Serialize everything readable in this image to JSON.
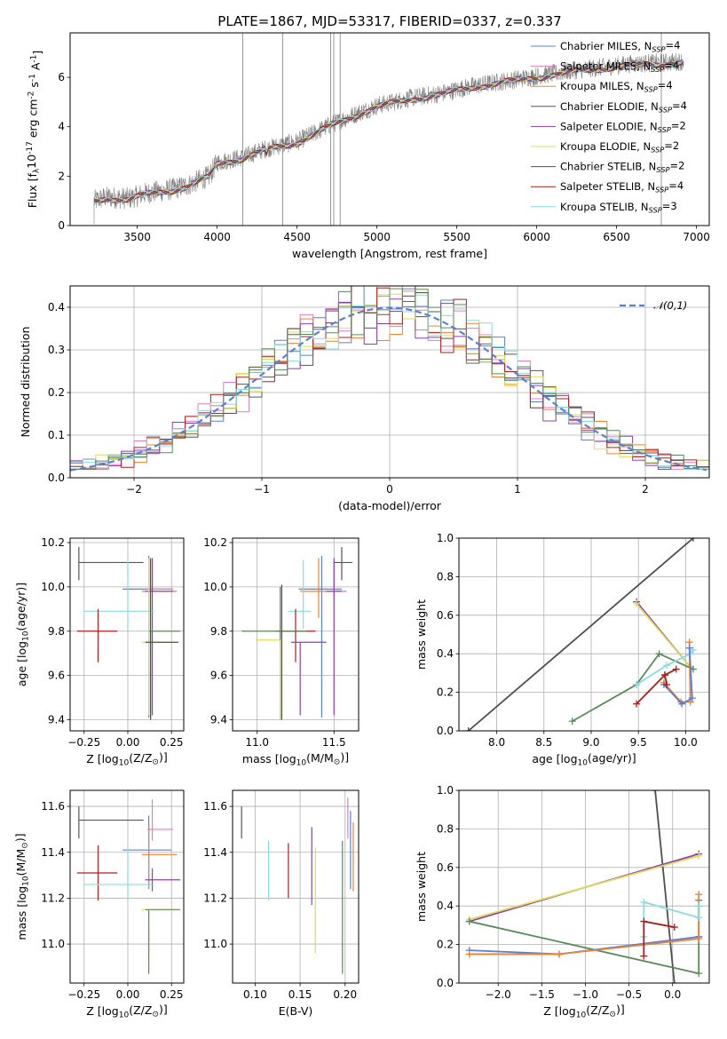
{
  "title": "PLATE=1867, MJD=53317, FIBERID=0337, z=0.337",
  "colors": {
    "Chabrier MILES": "#5b7fd6",
    "Salpeter MILES": "#e37dbf",
    "Kroupa MILES": "#ef8133",
    "Chabrier ELODIE": "#555555",
    "Salpeter ELODIE": "#8e3fb0",
    "Kroupa ELODIE": "#dddd55",
    "Chabrier STELIB": "#4f4f4f",
    "Salpeter STELIB": "#b01c1c",
    "Kroupa STELIB": "#86dde0",
    "green": "#5a8a5a",
    "gauss": "#5b7fd6"
  },
  "chart_data": [
    {
      "id": "spectrum",
      "type": "line",
      "xlabel": "wavelength [Angstrom, rest frame]",
      "ylabel": "Flux [f$_\\lambda$10$^{-17}$ erg cm$^{-2}$ s$^{-1}$ A$^{-1}$]",
      "xlim": [
        3080,
        7080
      ],
      "ylim": [
        0,
        7.8
      ],
      "xticks": [
        3500,
        4000,
        4500,
        5000,
        5500,
        6000,
        6500,
        7000
      ],
      "yticks": [
        0,
        2,
        4,
        6
      ],
      "grid": false,
      "legend_position": "top-right",
      "legend": [
        {
          "name": "Chabrier MILES",
          "ssp": "N$_{SSP}$=4"
        },
        {
          "name": "Salpeter MILES",
          "ssp": "N$_{SSP}$=4"
        },
        {
          "name": "Kroupa MILES",
          "ssp": "N$_{SSP}$=4"
        },
        {
          "name": "Chabrier ELODIE",
          "ssp": "N$_{SSP}$=4"
        },
        {
          "name": "Salpeter ELODIE",
          "ssp": "N$_{SSP}$=2"
        },
        {
          "name": "Kroupa ELODIE",
          "ssp": "N$_{SSP}$=2"
        },
        {
          "name": "Chabrier STELIB",
          "ssp": "N$_{SSP}$=2"
        },
        {
          "name": "Salpeter STELIB",
          "ssp": "N$_{SSP}$=4"
        },
        {
          "name": "Kroupa STELIB",
          "ssp": "N$_{SSP}$=3"
        }
      ],
      "continuum": [
        [
          3230,
          1.0
        ],
        [
          3300,
          1.15
        ],
        [
          3450,
          1.1
        ],
        [
          3550,
          1.3
        ],
        [
          3700,
          1.45
        ],
        [
          3800,
          1.6
        ],
        [
          3950,
          2.0
        ],
        [
          4000,
          2.55
        ],
        [
          4150,
          2.75
        ],
        [
          4300,
          3.1
        ],
        [
          4500,
          3.4
        ],
        [
          4700,
          4.05
        ],
        [
          4900,
          4.6
        ],
        [
          5000,
          4.85
        ],
        [
          5200,
          5.15
        ],
        [
          5400,
          5.35
        ],
        [
          5600,
          5.65
        ],
        [
          5800,
          5.85
        ],
        [
          6000,
          6.05
        ],
        [
          6200,
          6.25
        ],
        [
          6400,
          6.4
        ],
        [
          6600,
          6.55
        ],
        [
          6800,
          6.6
        ],
        [
          6920,
          6.65
        ]
      ],
      "spikes": [
        [
          4160,
          7.8
        ],
        [
          4410,
          7.8
        ],
        [
          4710,
          7.8
        ],
        [
          4730,
          7.8
        ],
        [
          4770,
          7.8
        ],
        [
          6780,
          7.8
        ]
      ]
    },
    {
      "id": "residuals",
      "type": "line",
      "xlabel": "(data-model)/error",
      "ylabel": "Normed distribution",
      "xlim": [
        -2.5,
        2.5
      ],
      "ylim": [
        0,
        0.45
      ],
      "xticks": [
        -2,
        -1,
        0,
        1,
        2
      ],
      "yticks": [
        0.0,
        0.1,
        0.2,
        0.3,
        0.4
      ],
      "grid": true,
      "legend_position": "top-right",
      "legend": [
        {
          "name": "$\\mathcal{N}(0,1)$"
        }
      ],
      "bin_width": 0.1,
      "note": "nine step histograms scattered around a standard normal curve"
    },
    {
      "id": "z-vs-age",
      "type": "scatter",
      "xlabel": "Z [log$_{10}$(Z/Z$_\\odot$)]",
      "ylabel": "age  [log$_{10}$(age/yr)]",
      "xlim": [
        -0.33,
        0.32
      ],
      "ylim": [
        9.35,
        10.22
      ],
      "xticks": [
        -0.25,
        0.0,
        0.25
      ],
      "yticks": [
        9.4,
        9.6,
        9.8,
        10.0,
        10.2
      ],
      "grid": true,
      "points": [
        {
          "color": "Chabrier ELODIE",
          "x": -0.28,
          "y": 10.11,
          "x_err": [
            0.0,
            0.37
          ],
          "y_err": [
            0.08,
            0.07
          ]
        },
        {
          "color": "Chabrier MILES",
          "x": 0.12,
          "y": 9.99,
          "x_err": [
            0.15,
            0.13
          ],
          "y_err": [
            0.58,
            0.15
          ]
        },
        {
          "color": "Kroupa MILES",
          "x": 0.12,
          "y": 9.98,
          "x_err": [
            0.04,
            0.16
          ],
          "y_err": [
            0.12,
            0.15
          ]
        },
        {
          "color": "Salpeter MILES",
          "x": 0.14,
          "y": 9.99,
          "x_err": [
            0.03,
            0.12
          ],
          "y_err": [
            0.02,
            0.14
          ]
        },
        {
          "color": "Salpeter ELODIE",
          "x": 0.14,
          "y": 9.98,
          "x_err": [
            0.04,
            0.12
          ],
          "y_err": [
            0.56,
            0.15
          ]
        },
        {
          "color": "Kroupa STELIB",
          "x": 0.0,
          "y": 9.89,
          "x_err": [
            0.25,
            0.15
          ],
          "y_err": [
            0.08,
            0.23
          ]
        },
        {
          "color": "Salpeter STELIB",
          "x": -0.17,
          "y": 9.8,
          "x_err": [
            0.12,
            0.11
          ],
          "y_err": [
            0.14,
            0.1
          ]
        },
        {
          "color": "green",
          "x": 0.13,
          "y": 9.8,
          "x_err": [
            0.01,
            0.17
          ],
          "y_err": [
            0.4,
            0.0
          ]
        },
        {
          "color": "Kroupa ELODIE",
          "x": 0.12,
          "y": 9.75,
          "x_err": [
            0.04,
            0.16
          ],
          "y_err": [
            0.33,
            0.38
          ]
        },
        {
          "color": "Chabrier STELIB",
          "x": 0.13,
          "y": 9.75,
          "x_err": [
            0.03,
            0.16
          ],
          "y_err": [
            0.35,
            0.38
          ]
        }
      ]
    },
    {
      "id": "mass-vs-age",
      "type": "scatter",
      "xlabel": "mass [log$_{10}$(M/M$_\\odot$)]",
      "ylabel": "",
      "xlim": [
        10.84,
        11.66
      ],
      "ylim": [
        9.35,
        10.22
      ],
      "xticks": [
        11.0,
        11.5
      ],
      "yticks": [
        9.4,
        9.6,
        9.8,
        10.0,
        10.2
      ],
      "grid": true,
      "points": [
        {
          "color": "Chabrier ELODIE",
          "x": 11.55,
          "y": 10.11,
          "x_err": [
            0.05,
            0.07
          ],
          "y_err": [
            0.08,
            0.07
          ]
        },
        {
          "color": "Chabrier MILES",
          "x": 11.42,
          "y": 9.99,
          "x_err": [
            0.15,
            0.13
          ],
          "y_err": [
            0.58,
            0.15
          ]
        },
        {
          "color": "Kroupa MILES",
          "x": 11.4,
          "y": 9.98,
          "x_err": [
            0.12,
            0.18
          ],
          "y_err": [
            0.12,
            0.15
          ]
        },
        {
          "color": "Salpeter MILES",
          "x": 11.5,
          "y": 9.98,
          "x_err": [
            0.05,
            0.08
          ],
          "y_err": [
            0.02,
            0.14
          ]
        },
        {
          "color": "Salpeter ELODIE",
          "x": 11.5,
          "y": 9.98,
          "x_err": [
            0.05,
            0.05
          ],
          "y_err": [
            0.56,
            0.15
          ]
        },
        {
          "color": "Kroupa STELIB",
          "x": 11.3,
          "y": 9.89,
          "x_err": [
            0.1,
            0.05
          ],
          "y_err": [
            0.08,
            0.23
          ]
        },
        {
          "color": "Salpeter STELIB",
          "x": 11.25,
          "y": 9.8,
          "x_err": [
            0.13,
            0.13
          ],
          "y_err": [
            0.14,
            0.1
          ]
        },
        {
          "color": "green",
          "x": 11.15,
          "y": 9.8,
          "x_err": [
            0.25,
            0.17
          ],
          "y_err": [
            0.4,
            0.2
          ]
        },
        {
          "color": "Salpeter ELODIE",
          "x": 11.28,
          "y": 9.75,
          "x_err": [
            0.06,
            0.17
          ],
          "y_err": [
            0.33,
            0.0
          ]
        },
        {
          "color": "Kroupa ELODIE",
          "x": 11.15,
          "y": 9.76,
          "x_err": [
            0.16,
            0.0
          ],
          "y_err": [
            0.36,
            0.0
          ]
        },
        {
          "color": "Chabrier STELIB",
          "x": 11.16,
          "y": 9.75,
          "x_err": [
            0.0,
            0.0
          ],
          "y_err": [
            0.35,
            0.26
          ]
        }
      ]
    },
    {
      "id": "age-vs-massweight",
      "type": "line",
      "xlabel": "age  [log$_{10}$(age/yr)]",
      "ylabel": "mass weight",
      "xlim": [
        7.6,
        10.25
      ],
      "ylim": [
        0,
        1.0
      ],
      "xticks": [
        8.0,
        8.5,
        9.0,
        9.5,
        10.0
      ],
      "yticks": [
        0.0,
        0.2,
        0.4,
        0.6,
        0.8,
        1.0
      ],
      "grid": true,
      "series": [
        {
          "color": "Chabrier STELIB",
          "x": [
            7.7,
            10.08
          ],
          "y": [
            0.0,
            1.0
          ]
        },
        {
          "color": "Salpeter ELODIE",
          "x": [
            9.48,
            10.05
          ],
          "y": [
            0.67,
            0.33
          ]
        },
        {
          "color": "Kroupa ELODIE",
          "x": [
            9.48,
            10.05
          ],
          "y": [
            0.66,
            0.33
          ]
        },
        {
          "color": "green",
          "x": [
            8.8,
            9.48,
            9.72,
            10.08
          ],
          "y": [
            0.05,
            0.24,
            0.4,
            0.32
          ]
        },
        {
          "color": "Kroupa STELIB",
          "x": [
            9.48,
            9.8,
            10.05,
            10.08
          ],
          "y": [
            0.24,
            0.34,
            0.4,
            0.42
          ]
        },
        {
          "color": "Kroupa MILES",
          "x": [
            9.77,
            9.95,
            10.05,
            10.04
          ],
          "y": [
            0.25,
            0.15,
            0.15,
            0.46
          ]
        },
        {
          "color": "Chabrier MILES",
          "x": [
            9.77,
            9.96,
            10.07,
            10.04
          ],
          "y": [
            0.24,
            0.14,
            0.17,
            0.43
          ]
        },
        {
          "color": "Salpeter STELIB",
          "x": [
            9.48,
            9.78,
            9.9
          ],
          "y": [
            0.14,
            0.29,
            0.32
          ]
        },
        {
          "color": "Salpeter STELIB",
          "x": [
            9.78,
            9.8
          ],
          "y": [
            0.29,
            0.24
          ]
        }
      ]
    },
    {
      "id": "z-vs-mass",
      "type": "scatter",
      "xlabel": "Z [log$_{10}$(Z/Z$_\\odot$)]",
      "ylabel": "mass [log$_{10}$(M/M$_\\odot$)]",
      "xlim": [
        -0.33,
        0.32
      ],
      "ylim": [
        10.83,
        11.67
      ],
      "xticks": [
        -0.25,
        0.0,
        0.25
      ],
      "yticks": [
        11.0,
        11.2,
        11.4,
        11.6
      ],
      "grid": true,
      "points": [
        {
          "color": "Chabrier ELODIE",
          "x": -0.28,
          "y": 11.54,
          "x_err": [
            0.0,
            0.37
          ],
          "y_err": [
            0.08,
            0.06
          ]
        },
        {
          "color": "Salpeter MILES",
          "x": 0.14,
          "y": 11.5,
          "x_err": [
            0.03,
            0.12
          ],
          "y_err": [
            0.05,
            0.13
          ]
        },
        {
          "color": "Chabrier MILES",
          "x": 0.12,
          "y": 11.41,
          "x_err": [
            0.15,
            0.13
          ],
          "y_err": [
            0.17,
            0.15
          ]
        },
        {
          "color": "Kroupa MILES",
          "x": 0.12,
          "y": 11.39,
          "x_err": [
            0.04,
            0.16
          ],
          "y_err": [
            0.15,
            0.12
          ]
        },
        {
          "color": "Salpeter STELIB",
          "x": -0.17,
          "y": 11.31,
          "x_err": [
            0.12,
            0.11
          ],
          "y_err": [
            0.12,
            0.12
          ]
        },
        {
          "color": "Salpeter ELODIE",
          "x": 0.14,
          "y": 11.28,
          "x_err": [
            0.04,
            0.16
          ],
          "y_err": [
            0.05,
            0.05
          ]
        },
        {
          "color": "Kroupa STELIB",
          "x": 0.0,
          "y": 11.26,
          "x_err": [
            0.25,
            0.15
          ],
          "y_err": [
            0.07,
            0.16
          ]
        },
        {
          "color": "Kroupa ELODIE",
          "x": 0.12,
          "y": 11.15,
          "x_err": [
            0.04,
            0.16
          ],
          "y_err": [
            0.19,
            0.0
          ]
        },
        {
          "color": "green",
          "x": 0.12,
          "y": 11.15,
          "x_err": [
            0.02,
            0.18
          ],
          "y_err": [
            0.28,
            0.0
          ]
        }
      ]
    },
    {
      "id": "ebv-vs-mass",
      "type": "scatter",
      "xlabel": "E(B-V)",
      "ylabel": "",
      "xlim": [
        0.075,
        0.215
      ],
      "ylim": [
        10.83,
        11.67
      ],
      "xticks": [
        0.1,
        0.15,
        0.2
      ],
      "yticks": [
        11.0,
        11.2,
        11.4,
        11.6
      ],
      "grid": true,
      "points": [
        {
          "color": "Chabrier ELODIE",
          "x": 0.085,
          "y": 11.53,
          "y_err": [
            0.07,
            0.07
          ]
        },
        {
          "color": "Kroupa STELIB",
          "x": 0.115,
          "y": 11.32,
          "y_err": [
            0.13,
            0.13
          ]
        },
        {
          "color": "Salpeter STELIB",
          "x": 0.137,
          "y": 11.32,
          "y_err": [
            0.12,
            0.12
          ]
        },
        {
          "color": "Kroupa ELODIE",
          "x": 0.167,
          "y": 11.19,
          "y_err": [
            0.23,
            0.23
          ]
        },
        {
          "color": "Salpeter ELODIE",
          "x": 0.163,
          "y": 11.34,
          "y_err": [
            0.17,
            0.17
          ]
        },
        {
          "color": "green",
          "x": 0.197,
          "y": 11.16,
          "y_err": [
            0.29,
            0.29
          ]
        },
        {
          "color": "Salpeter MILES",
          "x": 0.203,
          "y": 11.55,
          "y_err": [
            0.09,
            0.09
          ]
        },
        {
          "color": "Chabrier MILES",
          "x": 0.206,
          "y": 11.41,
          "y_err": [
            0.17,
            0.17
          ]
        },
        {
          "color": "Kroupa MILES",
          "x": 0.209,
          "y": 11.38,
          "y_err": [
            0.15,
            0.15
          ]
        }
      ]
    },
    {
      "id": "z-vs-massweight",
      "type": "line",
      "xlabel": "Z [log$_{10}$(Z/Z$_\\odot$)]",
      "ylabel": "mass weight",
      "xlim": [
        -2.45,
        0.42
      ],
      "ylim": [
        0,
        1.0
      ],
      "xticks": [
        -2.0,
        -1.5,
        -1.0,
        -0.5,
        0.0
      ],
      "yticks": [
        0.0,
        0.2,
        0.4,
        0.6,
        0.8,
        1.0
      ],
      "grid": true,
      "series": [
        {
          "color": "Chabrier STELIB",
          "x": [
            -0.2,
            0.02
          ],
          "y": [
            1.0,
            0.0
          ]
        },
        {
          "color": "Salpeter ELODIE",
          "x": [
            -2.33,
            0.3
          ],
          "y": [
            0.32,
            0.67
          ]
        },
        {
          "color": "Kroupa ELODIE",
          "x": [
            -2.33,
            0.3
          ],
          "y": [
            0.33,
            0.66
          ]
        },
        {
          "color": "green",
          "x": [
            -2.33,
            0.3,
            0.3,
            0.3
          ],
          "y": [
            0.32,
            0.05,
            0.24,
            0.4
          ]
        },
        {
          "color": "Chabrier MILES",
          "x": [
            -2.33,
            -1.3,
            0.3,
            0.3
          ],
          "y": [
            0.17,
            0.15,
            0.24,
            0.43
          ]
        },
        {
          "color": "Kroupa MILES",
          "x": [
            -2.33,
            -1.3,
            0.3,
            0.3
          ],
          "y": [
            0.15,
            0.15,
            0.23,
            0.46
          ]
        },
        {
          "color": "Kroupa STELIB",
          "x": [
            -0.33,
            -0.33,
            0.3,
            0.3
          ],
          "y": [
            0.24,
            0.42,
            0.34,
            0.4
          ]
        },
        {
          "color": "Salpeter STELIB",
          "x": [
            -0.33,
            -0.33,
            0.02
          ],
          "y": [
            0.14,
            0.32,
            0.29
          ]
        }
      ]
    }
  ]
}
